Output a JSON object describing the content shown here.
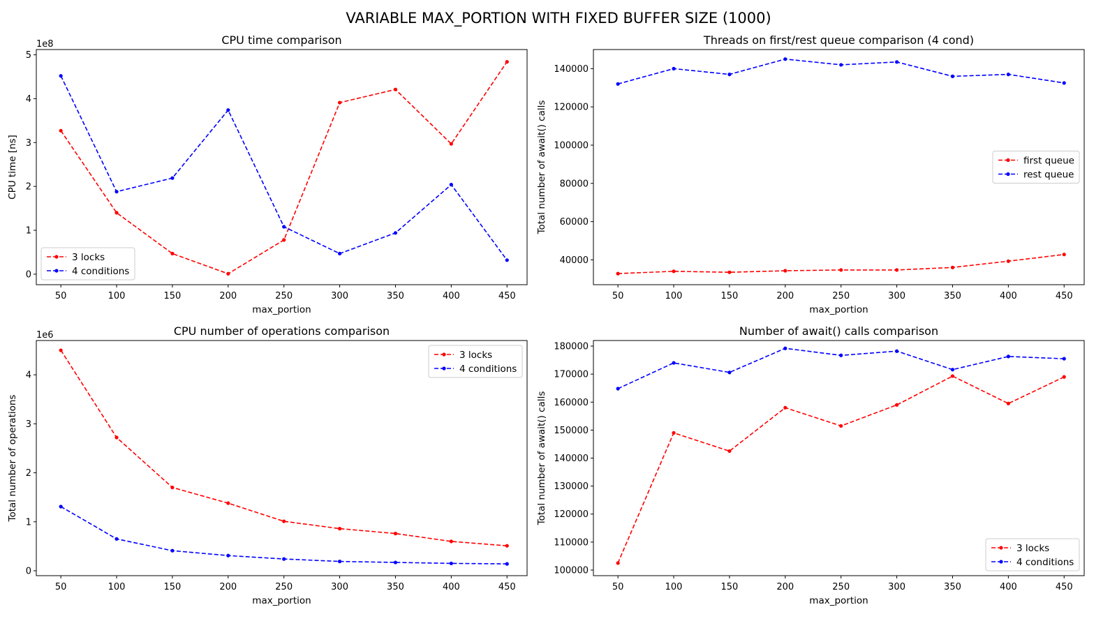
{
  "figure": {
    "title": "VARIABLE MAX_PORTION WITH FIXED BUFFER SIZE (1000)"
  },
  "chart_data": [
    {
      "type": "line",
      "title": "CPU time comparison",
      "xlabel": "max_portion",
      "ylabel": "CPU time [ns]",
      "y_exponent_label": "1e8",
      "y_scale": 100000000,
      "x": [
        50,
        100,
        150,
        200,
        250,
        300,
        350,
        400,
        450
      ],
      "xlim": [
        28,
        468
      ],
      "ylim": [
        -0.24,
        5.12
      ],
      "x_ticks": [
        50,
        100,
        150,
        200,
        250,
        300,
        350,
        400,
        450
      ],
      "y_ticks": [
        0,
        1,
        2,
        3,
        4,
        5
      ],
      "legend_position": "lower-left",
      "grid": false,
      "series": [
        {
          "name": "3 locks",
          "color": "#ff0000",
          "values": [
            3.27,
            1.4,
            0.47,
            0.01,
            0.78,
            3.91,
            4.21,
            2.97,
            4.84
          ]
        },
        {
          "name": "4 conditions",
          "color": "#0000ff",
          "values": [
            4.52,
            1.88,
            2.19,
            3.74,
            1.08,
            0.47,
            0.94,
            2.04,
            0.32
          ]
        }
      ]
    },
    {
      "type": "line",
      "title": "Threads on first/rest queue comparison (4 cond)",
      "xlabel": "max_portion",
      "ylabel": "Total number of await() calls",
      "x": [
        50,
        100,
        150,
        200,
        250,
        300,
        350,
        400,
        450
      ],
      "xlim": [
        28,
        468
      ],
      "ylim": [
        27000,
        150000
      ],
      "x_ticks": [
        50,
        100,
        150,
        200,
        250,
        300,
        350,
        400,
        450
      ],
      "y_ticks": [
        40000,
        60000,
        80000,
        100000,
        120000,
        140000
      ],
      "legend_position": "center-right",
      "grid": false,
      "series": [
        {
          "name": "first queue",
          "color": "#ff0000",
          "values": [
            32800,
            34000,
            33500,
            34300,
            34700,
            34700,
            36000,
            39300,
            42800
          ]
        },
        {
          "name": "rest queue",
          "color": "#0000ff",
          "values": [
            132000,
            140000,
            137000,
            145000,
            142000,
            143500,
            136000,
            137000,
            132500
          ]
        }
      ]
    },
    {
      "type": "line",
      "title": "CPU number of operations comparison",
      "xlabel": "max_portion",
      "ylabel": "Total number of operations",
      "y_exponent_label": "1e6",
      "y_scale": 1000000,
      "x": [
        50,
        100,
        150,
        200,
        250,
        300,
        350,
        400,
        450
      ],
      "xlim": [
        28,
        468
      ],
      "ylim": [
        -0.1,
        4.7
      ],
      "x_ticks": [
        50,
        100,
        150,
        200,
        250,
        300,
        350,
        400,
        450
      ],
      "y_ticks": [
        0,
        1,
        2,
        3,
        4
      ],
      "legend_position": "upper-right",
      "grid": false,
      "series": [
        {
          "name": "3 locks",
          "color": "#ff0000",
          "values": [
            4.5,
            2.72,
            1.7,
            1.38,
            1.01,
            0.86,
            0.76,
            0.6,
            0.51
          ]
        },
        {
          "name": "4 conditions",
          "color": "#0000ff",
          "values": [
            1.31,
            0.65,
            0.41,
            0.31,
            0.24,
            0.19,
            0.17,
            0.15,
            0.14
          ]
        }
      ]
    },
    {
      "type": "line",
      "title": "Number of await() calls comparison",
      "xlabel": "max_portion",
      "ylabel": "Total number of await() calls",
      "x": [
        50,
        100,
        150,
        200,
        250,
        300,
        350,
        400,
        450
      ],
      "xlim": [
        28,
        468
      ],
      "ylim": [
        98000,
        182000
      ],
      "x_ticks": [
        50,
        100,
        150,
        200,
        250,
        300,
        350,
        400,
        450
      ],
      "y_ticks": [
        100000,
        110000,
        120000,
        130000,
        140000,
        150000,
        160000,
        170000,
        180000
      ],
      "legend_position": "lower-right",
      "grid": false,
      "series": [
        {
          "name": "3 locks",
          "color": "#ff0000",
          "values": [
            102500,
            149000,
            142500,
            158000,
            151500,
            159000,
            169300,
            159500,
            169000
          ]
        },
        {
          "name": "4 conditions",
          "color": "#0000ff",
          "values": [
            164800,
            174000,
            170600,
            179200,
            176700,
            178200,
            171600,
            176300,
            175500
          ]
        }
      ]
    }
  ]
}
